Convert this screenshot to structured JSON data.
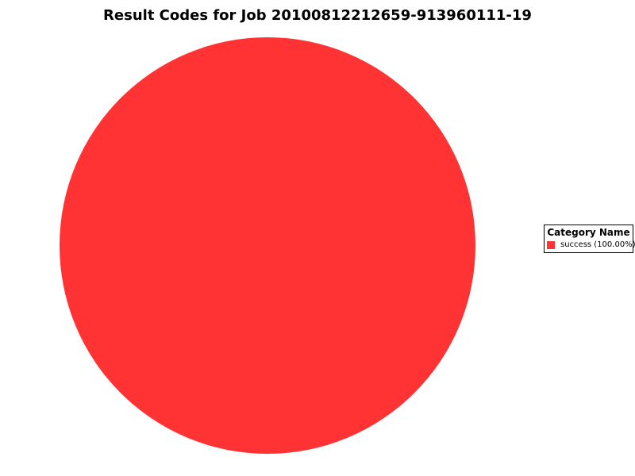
{
  "title": "Result Codes for Job 20100812212659-913960111-19",
  "chart_data": {
    "type": "pie",
    "title": "Result Codes for Job 20100812212659-913960111-19",
    "categories": [
      "success"
    ],
    "values": [
      100.0
    ],
    "slices": [
      {
        "label": "success",
        "value": 100.0,
        "percent": "100.00%",
        "color": "#FF3333"
      }
    ],
    "legend": {
      "position": "right",
      "title": "Category Name",
      "entries": [
        {
          "label": "success (100.00%)",
          "color": "#FF3333"
        }
      ]
    },
    "background_color": "#FFFFFF",
    "data_labels_visible": false,
    "axes_visible": false
  }
}
